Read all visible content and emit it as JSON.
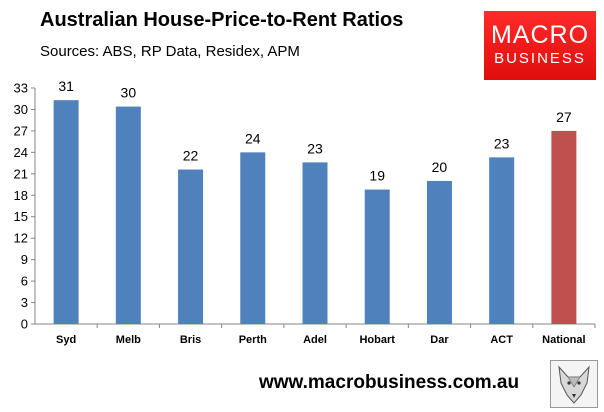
{
  "header": {
    "title": "Australian House-Price-to-Rent Ratios",
    "subtitle": "Sources: ABS, RP Data, Residex, APM"
  },
  "logo": {
    "line1": "MACRO",
    "line2": "BUSINESS",
    "color": "#e8141a"
  },
  "footer": {
    "url": "www.macrobusiness.com.au",
    "emblem_icon": "wolf-head-icon"
  },
  "chart_data": {
    "type": "bar",
    "title": "Australian House-Price-to-Rent Ratios",
    "subtitle": "Sources: ABS, RP Data, Residex, APM",
    "xlabel": "",
    "ylabel": "",
    "categories": [
      "Syd",
      "Melb",
      "Bris",
      "Perth",
      "Adel",
      "Hobart",
      "Dar",
      "ACT",
      "National"
    ],
    "values": [
      31.3,
      30.4,
      21.6,
      24.0,
      22.6,
      18.8,
      20.0,
      23.3,
      27.0
    ],
    "data_labels": [
      "31",
      "30",
      "22",
      "24",
      "23",
      "19",
      "20",
      "23",
      "27"
    ],
    "ylim": [
      0,
      33
    ],
    "yticks": [
      0,
      3,
      6,
      9,
      12,
      15,
      18,
      21,
      24,
      27,
      30,
      33
    ],
    "grid": false,
    "legend": "none",
    "colors": {
      "default": "#4f81bd",
      "highlight": "#c0504d"
    },
    "highlight_category": "National"
  }
}
